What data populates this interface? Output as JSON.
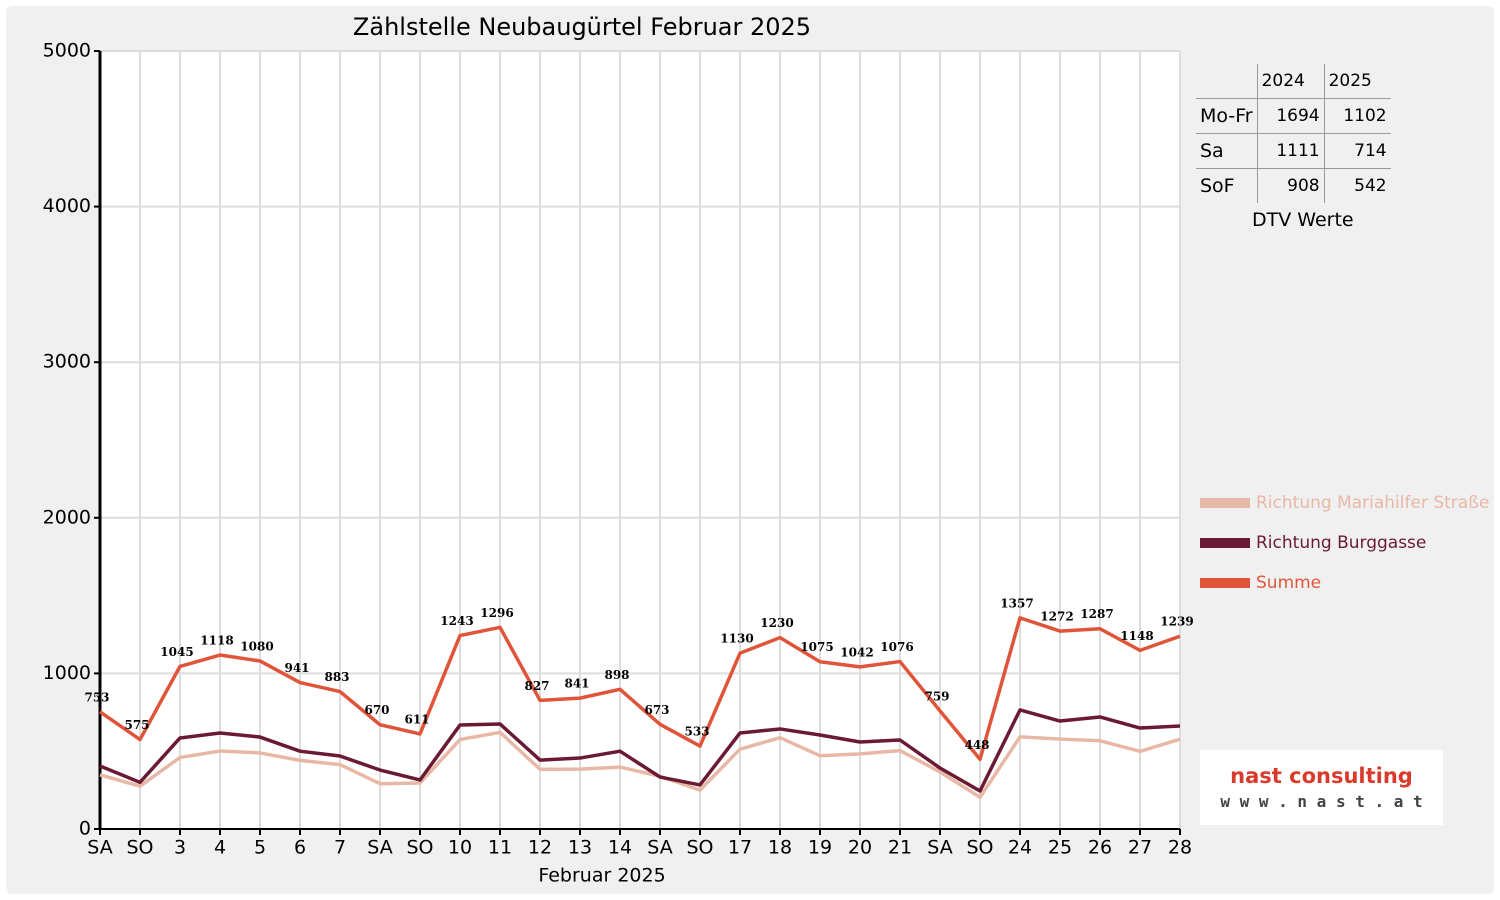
{
  "chart_data": {
    "type": "line",
    "title": "Zählstelle Neubaugürtel Februar 2025",
    "x_label": "Februar 2025",
    "categories": [
      "SA",
      "SO",
      "3",
      "4",
      "5",
      "6",
      "7",
      "SA",
      "SO",
      "10",
      "11",
      "12",
      "13",
      "14",
      "SA",
      "SO",
      "17",
      "18",
      "19",
      "20",
      "21",
      "SA",
      "SO",
      "24",
      "25",
      "26",
      "27",
      "28"
    ],
    "highlight_categories": [
      1,
      8,
      15,
      22
    ],
    "highlight_color": "#ee0000",
    "ylim": [
      0,
      5000
    ],
    "yticks": [
      0,
      1000,
      2000,
      3000,
      4000,
      5000
    ],
    "grid": true,
    "series": [
      {
        "name": "Richtung Mariahilfer Straße",
        "color": "#e8b8a6",
        "values": [
          348,
          275,
          460,
          501,
          489,
          441,
          414,
          291,
          296,
          575,
          621,
          384,
          385,
          398,
          339,
          250,
          513,
          587,
          471,
          483,
          504,
          367,
          204,
          592,
          578,
          567,
          499,
          577
        ]
      },
      {
        "name": "Richtung Burggasse",
        "color": "#6a1a32",
        "values": [
          405,
          300,
          585,
          617,
          591,
          500,
          469,
          379,
          315,
          668,
          675,
          443,
          456,
          500,
          334,
          283,
          617,
          643,
          604,
          559,
          572,
          392,
          244,
          765,
          694,
          720,
          649,
          662
        ]
      },
      {
        "name": "Summe",
        "color": "#e0553a",
        "labels": true,
        "values": [
          753,
          575,
          1045,
          1118,
          1080,
          941,
          883,
          670,
          611,
          1243,
          1296,
          827,
          841,
          898,
          673,
          533,
          1130,
          1230,
          1075,
          1042,
          1076,
          759,
          448,
          1357,
          1272,
          1287,
          1148,
          1239
        ]
      }
    ]
  },
  "dtv_table": {
    "header": [
      "2024",
      "2025"
    ],
    "rows": [
      [
        "Mo-Fr",
        "1694",
        "1102"
      ],
      [
        "Sa",
        "1111",
        "714"
      ],
      [
        "SoF",
        "908",
        "542"
      ]
    ],
    "caption": "DTV Werte"
  },
  "logo": {
    "name": "nast consulting",
    "url": "w w w . n a s t . a t"
  }
}
